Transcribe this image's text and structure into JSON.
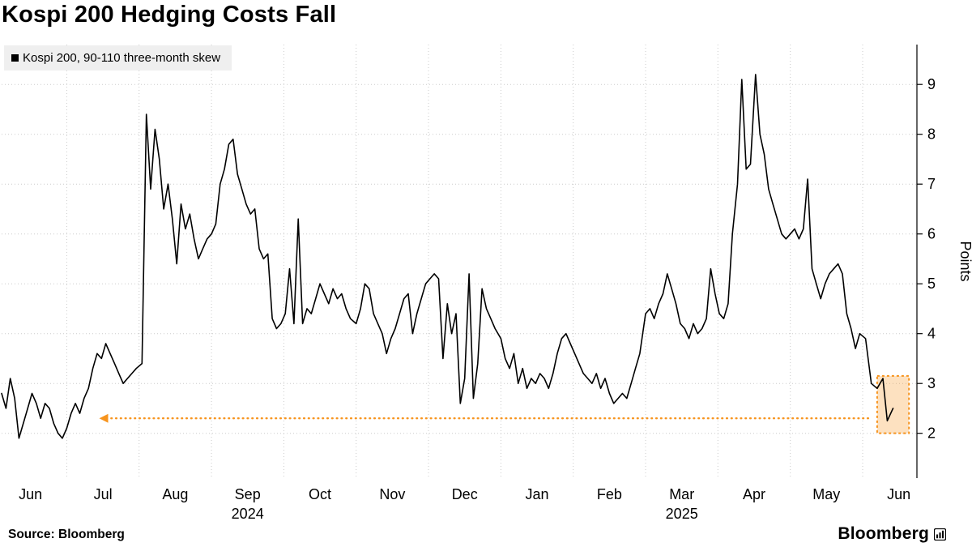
{
  "title": "Kospi 200 Hedging Costs Fall",
  "legend": {
    "label": "Kospi 200, 90-110 three-month skew",
    "swatch_color": "#000000"
  },
  "source_line": "Source: Bloomberg",
  "brand": {
    "name": "Bloomberg",
    "icon": "bar-chart-icon"
  },
  "colors": {
    "line": "#000000",
    "grid": "#cbcbcb",
    "accent": "#F7941E",
    "highlight_fill": "rgba(247,148,30,0.28)",
    "legend_bg": "#efefef"
  },
  "y_axis": {
    "label": "Points",
    "ticks": [
      2,
      3,
      4,
      5,
      6,
      7,
      8,
      9
    ]
  },
  "x_axis": {
    "month_labels": [
      "Jun",
      "Jul",
      "Aug",
      "Sep",
      "Oct",
      "Nov",
      "Dec",
      "Jan",
      "Feb",
      "Mar",
      "Apr",
      "May",
      "Jun"
    ],
    "year_labels": [
      {
        "text": "2024",
        "month_index": 3
      },
      {
        "text": "2025",
        "month_index": 9
      }
    ]
  },
  "annotations": {
    "reference_line": {
      "value": 2.3,
      "x_from": 1.55,
      "x_to": 12.13,
      "arrow_direction": "left"
    },
    "highlight_box": {
      "x_from": 12.2,
      "x_to": 12.64,
      "y_from": 2.0,
      "y_to": 3.15
    }
  },
  "chart_data": {
    "type": "line",
    "title": "Kospi 200 Hedging Costs Fall",
    "ylabel": "Points",
    "xlabel": "",
    "x_unit": "months_since_2024-06-01",
    "x_domain": [
      0.1,
      12.75
    ],
    "y_domain": [
      1.1,
      9.8
    ],
    "y_ticks": [
      2,
      3,
      4,
      5,
      6,
      7,
      8,
      9
    ],
    "grid": true,
    "legend_position": "top-left",
    "series": [
      {
        "name": "Kospi 200, 90-110 three-month skew",
        "color": "#000000",
        "points": [
          [
            0.1,
            2.8
          ],
          [
            0.16,
            2.5
          ],
          [
            0.22,
            3.1
          ],
          [
            0.28,
            2.7
          ],
          [
            0.34,
            1.9
          ],
          [
            0.4,
            2.2
          ],
          [
            0.46,
            2.5
          ],
          [
            0.52,
            2.8
          ],
          [
            0.58,
            2.6
          ],
          [
            0.64,
            2.3
          ],
          [
            0.7,
            2.6
          ],
          [
            0.76,
            2.5
          ],
          [
            0.82,
            2.2
          ],
          [
            0.88,
            2.0
          ],
          [
            0.94,
            1.9
          ],
          [
            1.0,
            2.1
          ],
          [
            1.06,
            2.4
          ],
          [
            1.12,
            2.6
          ],
          [
            1.18,
            2.4
          ],
          [
            1.24,
            2.7
          ],
          [
            1.3,
            2.9
          ],
          [
            1.36,
            3.3
          ],
          [
            1.42,
            3.6
          ],
          [
            1.48,
            3.5
          ],
          [
            1.54,
            3.8
          ],
          [
            1.6,
            3.6
          ],
          [
            1.66,
            3.4
          ],
          [
            1.72,
            3.2
          ],
          [
            1.78,
            3.0
          ],
          [
            1.84,
            3.1
          ],
          [
            1.9,
            3.2
          ],
          [
            1.96,
            3.3
          ],
          [
            2.04,
            3.4
          ],
          [
            2.1,
            8.4
          ],
          [
            2.16,
            6.9
          ],
          [
            2.22,
            8.1
          ],
          [
            2.28,
            7.5
          ],
          [
            2.34,
            6.5
          ],
          [
            2.4,
            7.0
          ],
          [
            2.46,
            6.3
          ],
          [
            2.52,
            5.4
          ],
          [
            2.58,
            6.6
          ],
          [
            2.64,
            6.1
          ],
          [
            2.7,
            6.4
          ],
          [
            2.76,
            5.9
          ],
          [
            2.82,
            5.5
          ],
          [
            2.88,
            5.7
          ],
          [
            2.94,
            5.9
          ],
          [
            3.0,
            6.0
          ],
          [
            3.06,
            6.2
          ],
          [
            3.12,
            7.0
          ],
          [
            3.18,
            7.3
          ],
          [
            3.24,
            7.8
          ],
          [
            3.3,
            7.9
          ],
          [
            3.36,
            7.2
          ],
          [
            3.42,
            6.9
          ],
          [
            3.48,
            6.6
          ],
          [
            3.54,
            6.4
          ],
          [
            3.6,
            6.5
          ],
          [
            3.66,
            5.7
          ],
          [
            3.72,
            5.5
          ],
          [
            3.78,
            5.6
          ],
          [
            3.84,
            4.3
          ],
          [
            3.9,
            4.1
          ],
          [
            3.96,
            4.2
          ],
          [
            4.02,
            4.4
          ],
          [
            4.08,
            5.3
          ],
          [
            4.14,
            4.2
          ],
          [
            4.2,
            6.3
          ],
          [
            4.26,
            4.2
          ],
          [
            4.32,
            4.5
          ],
          [
            4.38,
            4.4
          ],
          [
            4.44,
            4.7
          ],
          [
            4.5,
            5.0
          ],
          [
            4.56,
            4.8
          ],
          [
            4.62,
            4.6
          ],
          [
            4.68,
            4.9
          ],
          [
            4.74,
            4.7
          ],
          [
            4.8,
            4.8
          ],
          [
            4.86,
            4.5
          ],
          [
            4.92,
            4.3
          ],
          [
            5.0,
            4.2
          ],
          [
            5.06,
            4.5
          ],
          [
            5.12,
            5.0
          ],
          [
            5.18,
            4.9
          ],
          [
            5.24,
            4.4
          ],
          [
            5.3,
            4.2
          ],
          [
            5.36,
            4.0
          ],
          [
            5.42,
            3.6
          ],
          [
            5.48,
            3.9
          ],
          [
            5.54,
            4.1
          ],
          [
            5.6,
            4.4
          ],
          [
            5.66,
            4.7
          ],
          [
            5.72,
            4.8
          ],
          [
            5.78,
            4.0
          ],
          [
            5.84,
            4.4
          ],
          [
            5.9,
            4.7
          ],
          [
            5.96,
            5.0
          ],
          [
            6.02,
            5.1
          ],
          [
            6.08,
            5.2
          ],
          [
            6.14,
            5.1
          ],
          [
            6.2,
            3.5
          ],
          [
            6.26,
            4.6
          ],
          [
            6.32,
            4.0
          ],
          [
            6.38,
            4.4
          ],
          [
            6.44,
            2.6
          ],
          [
            6.5,
            3.1
          ],
          [
            6.56,
            5.2
          ],
          [
            6.62,
            2.7
          ],
          [
            6.68,
            3.4
          ],
          [
            6.74,
            4.9
          ],
          [
            6.8,
            4.5
          ],
          [
            6.86,
            4.3
          ],
          [
            6.92,
            4.1
          ],
          [
            7.0,
            3.9
          ],
          [
            7.06,
            3.5
          ],
          [
            7.12,
            3.3
          ],
          [
            7.18,
            3.6
          ],
          [
            7.24,
            3.0
          ],
          [
            7.3,
            3.3
          ],
          [
            7.36,
            2.9
          ],
          [
            7.42,
            3.1
          ],
          [
            7.48,
            3.0
          ],
          [
            7.54,
            3.2
          ],
          [
            7.6,
            3.1
          ],
          [
            7.66,
            2.9
          ],
          [
            7.72,
            3.2
          ],
          [
            7.78,
            3.6
          ],
          [
            7.84,
            3.9
          ],
          [
            7.9,
            4.0
          ],
          [
            7.96,
            3.8
          ],
          [
            8.02,
            3.6
          ],
          [
            8.08,
            3.4
          ],
          [
            8.14,
            3.2
          ],
          [
            8.2,
            3.1
          ],
          [
            8.26,
            3.0
          ],
          [
            8.32,
            3.2
          ],
          [
            8.38,
            2.9
          ],
          [
            8.44,
            3.1
          ],
          [
            8.5,
            2.8
          ],
          [
            8.56,
            2.6
          ],
          [
            8.62,
            2.7
          ],
          [
            8.68,
            2.8
          ],
          [
            8.74,
            2.7
          ],
          [
            8.8,
            3.0
          ],
          [
            8.86,
            3.3
          ],
          [
            8.92,
            3.6
          ],
          [
            9.0,
            4.4
          ],
          [
            9.06,
            4.5
          ],
          [
            9.12,
            4.3
          ],
          [
            9.18,
            4.6
          ],
          [
            9.24,
            4.8
          ],
          [
            9.3,
            5.2
          ],
          [
            9.36,
            4.9
          ],
          [
            9.42,
            4.6
          ],
          [
            9.48,
            4.2
          ],
          [
            9.54,
            4.1
          ],
          [
            9.6,
            3.9
          ],
          [
            9.66,
            4.2
          ],
          [
            9.72,
            4.0
          ],
          [
            9.78,
            4.1
          ],
          [
            9.84,
            4.3
          ],
          [
            9.9,
            5.3
          ],
          [
            9.96,
            4.8
          ],
          [
            10.02,
            4.4
          ],
          [
            10.08,
            4.3
          ],
          [
            10.14,
            4.6
          ],
          [
            10.2,
            6.0
          ],
          [
            10.27,
            7.0
          ],
          [
            10.33,
            9.1
          ],
          [
            10.39,
            7.3
          ],
          [
            10.45,
            7.4
          ],
          [
            10.52,
            9.2
          ],
          [
            10.58,
            8.0
          ],
          [
            10.64,
            7.6
          ],
          [
            10.7,
            6.9
          ],
          [
            10.76,
            6.6
          ],
          [
            10.82,
            6.3
          ],
          [
            10.88,
            6.0
          ],
          [
            10.94,
            5.9
          ],
          [
            11.0,
            6.0
          ],
          [
            11.06,
            6.1
          ],
          [
            11.12,
            5.9
          ],
          [
            11.18,
            6.1
          ],
          [
            11.24,
            7.1
          ],
          [
            11.3,
            5.3
          ],
          [
            11.36,
            5.0
          ],
          [
            11.42,
            4.7
          ],
          [
            11.48,
            5.0
          ],
          [
            11.54,
            5.2
          ],
          [
            11.6,
            5.3
          ],
          [
            11.66,
            5.4
          ],
          [
            11.72,
            5.2
          ],
          [
            11.78,
            4.4
          ],
          [
            11.84,
            4.1
          ],
          [
            11.9,
            3.7
          ],
          [
            11.96,
            4.0
          ],
          [
            12.04,
            3.9
          ],
          [
            12.12,
            3.0
          ],
          [
            12.2,
            2.9
          ],
          [
            12.28,
            3.1
          ],
          [
            12.34,
            2.25
          ],
          [
            12.42,
            2.5
          ]
        ]
      }
    ]
  }
}
